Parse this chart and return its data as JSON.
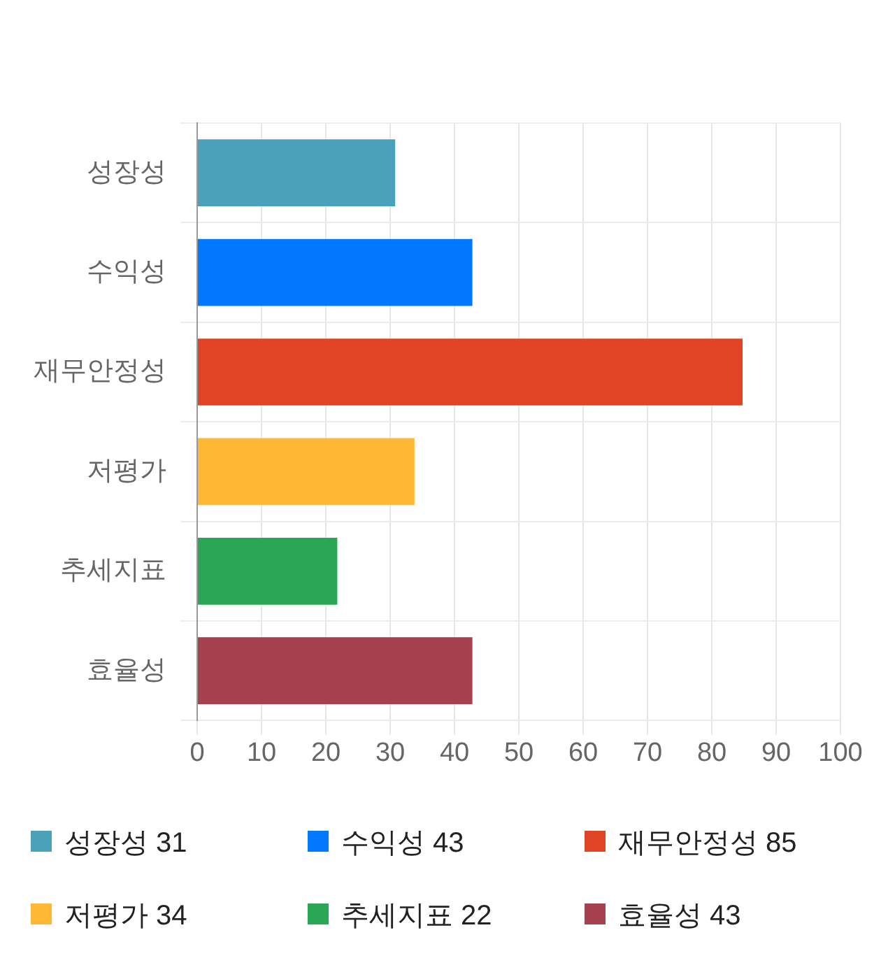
{
  "chart_data": {
    "type": "bar",
    "orientation": "horizontal",
    "stacked": true,
    "categories": [
      "성장성",
      "수익성",
      "재무안정성",
      "저평가",
      "추세지표",
      "효율성"
    ],
    "series": [
      {
        "name": "성장성 31",
        "color": "#4aa1b9",
        "values": [
          31,
          null,
          null,
          null,
          null,
          null
        ]
      },
      {
        "name": "수익성 43",
        "color": "#0078ff",
        "values": [
          null,
          43,
          null,
          null,
          null,
          null
        ]
      },
      {
        "name": "재무안정성 85",
        "color": "#e14424",
        "values": [
          null,
          null,
          85,
          null,
          null,
          null
        ]
      },
      {
        "name": "저평가 34",
        "color": "#feb833",
        "values": [
          null,
          null,
          null,
          34,
          null,
          null
        ]
      },
      {
        "name": "추세지표 22",
        "color": "#29a755",
        "values": [
          null,
          null,
          null,
          null,
          22,
          null
        ]
      },
      {
        "name": "효율성 43",
        "color": "#a6414f",
        "values": [
          null,
          null,
          null,
          null,
          null,
          43
        ]
      }
    ],
    "xlim": [
      0,
      100
    ],
    "xticks": [
      0,
      10,
      20,
      30,
      40,
      50,
      60,
      70,
      80,
      90,
      100
    ],
    "grid": true,
    "legend": "bottom"
  }
}
